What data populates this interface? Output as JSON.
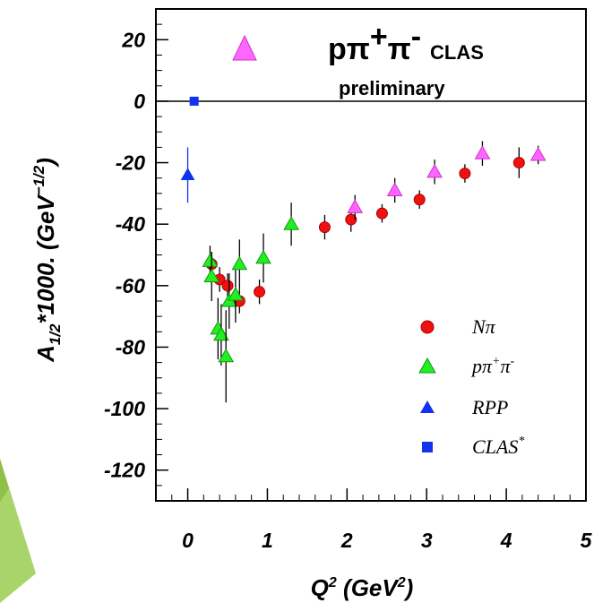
{
  "chart_data": {
    "type": "scatter",
    "xlabel": "Q² (GeV²)",
    "ylabel": "A1/2*1000. (GeV−1/2)",
    "xlim": [
      -0.4,
      5.0
    ],
    "ylim": [
      -130,
      30
    ],
    "x_ticks": [
      "0",
      "1",
      "2",
      "3",
      "4",
      "5"
    ],
    "y_ticks": [
      "20",
      "0",
      "-20",
      "-40",
      "-60",
      "-80",
      "-100",
      "-120"
    ],
    "annotation": {
      "main": "pπ⁺π⁻",
      "main_base": "pπ",
      "main_sup": "+",
      "main_base2": "π",
      "main_sup2": "-",
      "tag": "CLAS",
      "line2": "preliminary"
    },
    "legend_placement": "bottom-right",
    "series": [
      {
        "name": "Nπ",
        "legend_base": "Nπ",
        "marker": "circle",
        "color": "#ee1111",
        "points": [
          {
            "x": 0.3,
            "y": -53,
            "err": 4
          },
          {
            "x": 0.4,
            "y": -58,
            "err": 4
          },
          {
            "x": 0.5,
            "y": -60,
            "err": 4
          },
          {
            "x": 0.65,
            "y": -65,
            "err": 4
          },
          {
            "x": 0.9,
            "y": -62,
            "err": 4
          },
          {
            "x": 1.72,
            "y": -41,
            "err": 4
          },
          {
            "x": 2.05,
            "y": -38.5,
            "err": 4
          },
          {
            "x": 2.44,
            "y": -36.5,
            "err": 3
          },
          {
            "x": 2.91,
            "y": -32,
            "err": 3
          },
          {
            "x": 3.48,
            "y": -23.5,
            "err": 3
          },
          {
            "x": 4.16,
            "y": -20,
            "err": 5
          }
        ]
      },
      {
        "name": "pπ⁺π⁻",
        "legend_base": "pπ",
        "legend_sup": "+",
        "legend_base2": "π",
        "legend_sup2": "-",
        "marker": "triangle",
        "color": "#22ee22",
        "points": [
          {
            "x": 0.28,
            "y": -52,
            "err": 5
          },
          {
            "x": 0.3,
            "y": -57,
            "err": 8
          },
          {
            "x": 0.38,
            "y": -74,
            "err": 10
          },
          {
            "x": 0.42,
            "y": -76,
            "err": 10
          },
          {
            "x": 0.48,
            "y": -83,
            "err": 15
          },
          {
            "x": 0.52,
            "y": -65,
            "err": 9
          },
          {
            "x": 0.6,
            "y": -63,
            "err": 9
          },
          {
            "x": 0.65,
            "y": -53,
            "err": 8
          },
          {
            "x": 0.95,
            "y": -51,
            "err": 8
          },
          {
            "x": 1.3,
            "y": -40,
            "err": 7
          }
        ]
      },
      {
        "name": "pπ⁺π⁻ CLAS preliminary",
        "marker": "triangle",
        "color": "#ff66ff",
        "points": [
          {
            "x": 2.1,
            "y": -34.5,
            "err": 4
          },
          {
            "x": 2.6,
            "y": -29,
            "err": 4
          },
          {
            "x": 3.1,
            "y": -23,
            "err": 4
          },
          {
            "x": 3.7,
            "y": -17,
            "err": 4
          },
          {
            "x": 4.4,
            "y": -17.5,
            "err": 3
          }
        ]
      },
      {
        "name": "RPP",
        "legend_base": "RPP",
        "marker": "triangle",
        "color": "#1133ee",
        "points": [
          {
            "x": 0.0,
            "y": -24,
            "err": 9
          }
        ]
      },
      {
        "name": "CLAS*",
        "legend_base": "CLAS",
        "legend_sup": "*",
        "marker": "square",
        "color": "#1133ee",
        "points": [
          {
            "x": 0.08,
            "y": 0,
            "err": 0
          }
        ]
      }
    ]
  }
}
